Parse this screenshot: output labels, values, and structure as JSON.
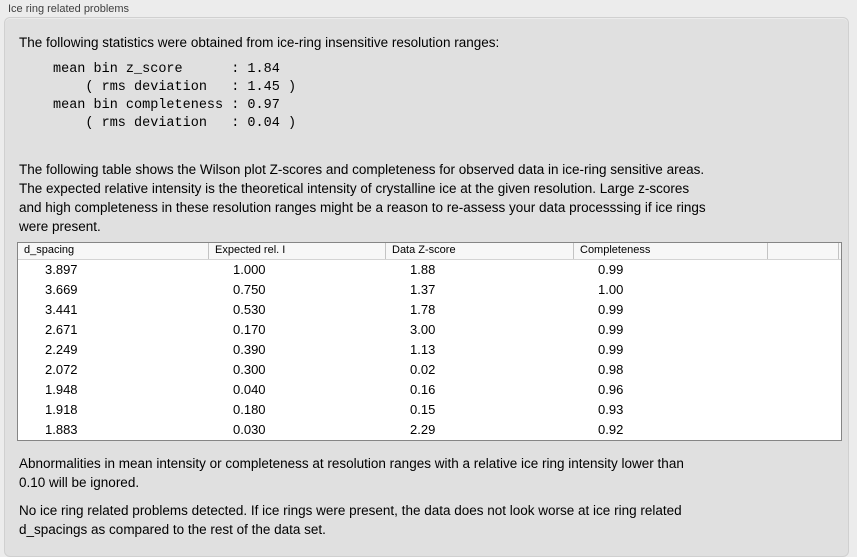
{
  "section": {
    "title": "Ice ring related problems"
  },
  "intro": {
    "text": "The following statistics were obtained from ice-ring insensitive resolution ranges:"
  },
  "stats_block": {
    "text": "mean bin z_score      : 1.84\n    ( rms deviation   : 1.45 )\nmean bin completeness : 0.97\n    ( rms deviation   : 0.04 )",
    "mean_bin_z_score": "1.84",
    "z_score_rms_deviation": "1.45",
    "mean_bin_completeness": "0.97",
    "completeness_rms_deviation": "0.04"
  },
  "table_description": {
    "text": "The following table shows the Wilson plot Z-scores and completeness for observed data in ice-ring sensitive areas.\nThe expected relative intensity is the theoretical intensity of crystalline ice at the given resolution. Large z-scores\nand high completeness in these resolution ranges might be a reason to re-assess your data processsing if ice rings\nwere present."
  },
  "table": {
    "columns": [
      "d_spacing",
      "Expected rel. I",
      "Data Z-score",
      "Completeness",
      ""
    ],
    "rows": [
      [
        "3.897",
        "1.000",
        "1.88",
        "0.99"
      ],
      [
        "3.669",
        "0.750",
        "1.37",
        "1.00"
      ],
      [
        "3.441",
        "0.530",
        "1.78",
        "0.99"
      ],
      [
        "2.671",
        "0.170",
        "3.00",
        "0.99"
      ],
      [
        "2.249",
        "0.390",
        "1.13",
        "0.99"
      ],
      [
        "2.072",
        "0.300",
        "0.02",
        "0.98"
      ],
      [
        "1.948",
        "0.040",
        "0.16",
        "0.96"
      ],
      [
        "1.918",
        "0.180",
        "0.15",
        "0.93"
      ],
      [
        "1.883",
        "0.030",
        "2.29",
        "0.92"
      ]
    ]
  },
  "notes": {
    "ignore": {
      "text": "Abnormalities in mean intensity or completeness at resolution ranges with a relative ice ring intensity lower than\n0.10 will be ignored."
    },
    "conclusion": {
      "text": "No ice ring related problems detected. If ice rings were present, the data does not look worse at ice ring related\nd_spacings as compared to the rest of the data set."
    }
  },
  "colors": {
    "page_bg": "#ececec",
    "panel_bg": "#e0e0e0",
    "table_bg": "#ffffff",
    "table_border": "#858585",
    "table_header_bg": "#f7f7f7",
    "title_text": "#3f3f3f",
    "body_text": "#000000"
  }
}
